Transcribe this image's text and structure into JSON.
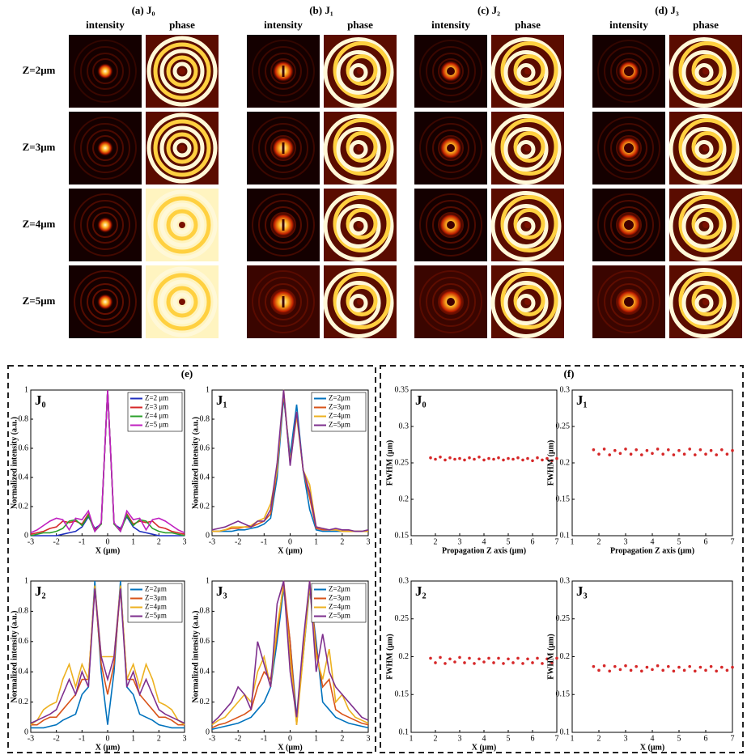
{
  "image_grid": {
    "columns": [
      {
        "label": "(a) J₀",
        "subtitles": [
          "intensity",
          "phase"
        ]
      },
      {
        "label": "(b) J₁",
        "subtitles": [
          "intensity",
          "phase"
        ]
      },
      {
        "label": "(c) J₂",
        "subtitles": [
          "intensity",
          "phase"
        ]
      },
      {
        "label": "(d) J₃",
        "subtitles": [
          "intensity",
          "phase"
        ]
      }
    ],
    "rows": [
      "Z=2μm",
      "Z=3μm",
      "Z=4μm",
      "Z=5μm"
    ]
  },
  "panel_labels": {
    "e": "(e)",
    "f": "(f)"
  },
  "chart_data": [
    {
      "type": "line",
      "title": "J₀",
      "xlabel": "X (μm)",
      "ylabel": "Normalized intensity (a.u.)",
      "legend": "upper right",
      "xlim": [
        -3,
        3
      ],
      "ylim": [
        0,
        1
      ],
      "xticks": [
        -3,
        -2,
        -1,
        0,
        1,
        2,
        3
      ],
      "yticks": [
        0,
        0.2,
        0.4,
        0.6,
        0.8,
        1
      ],
      "x": [
        -3,
        -2.75,
        -2.5,
        -2.25,
        -2,
        -1.75,
        -1.5,
        -1.25,
        -1,
        -0.75,
        -0.5,
        -0.25,
        0,
        0.25,
        0.5,
        0.75,
        1,
        1.25,
        1.5,
        1.75,
        2,
        2.25,
        2.5,
        2.75,
        3
      ],
      "series": [
        {
          "name": "Z=2 μm",
          "color": "#1f2fbf",
          "values": [
            0,
            0,
            0,
            0,
            0,
            0.01,
            0.02,
            0.03,
            0.06,
            0.13,
            0.05,
            0.08,
            1,
            0.08,
            0.05,
            0.13,
            0.06,
            0.03,
            0.02,
            0.01,
            0,
            0,
            0,
            0,
            0
          ]
        },
        {
          "name": "Z=3 μm",
          "color": "#d62728",
          "values": [
            0.01,
            0.02,
            0.03,
            0.05,
            0.06,
            0.1,
            0.09,
            0.1,
            0.08,
            0.15,
            0.04,
            0.08,
            1,
            0.08,
            0.04,
            0.15,
            0.08,
            0.1,
            0.09,
            0.1,
            0.06,
            0.05,
            0.03,
            0.02,
            0.01
          ]
        },
        {
          "name": "Z=4 μm",
          "color": "#2ca02c",
          "values": [
            0,
            0.01,
            0.02,
            0.02,
            0.03,
            0.05,
            0.1,
            0.11,
            0.07,
            0.14,
            0.03,
            0.08,
            1,
            0.08,
            0.03,
            0.14,
            0.07,
            0.11,
            0.1,
            0.05,
            0.03,
            0.02,
            0.02,
            0.01,
            0
          ]
        },
        {
          "name": "Z=5 μm",
          "color": "#c020c0",
          "values": [
            0.02,
            0.04,
            0.07,
            0.1,
            0.12,
            0.11,
            0.04,
            0.12,
            0.11,
            0.17,
            0.03,
            0.09,
            1,
            0.09,
            0.03,
            0.17,
            0.11,
            0.12,
            0.04,
            0.11,
            0.12,
            0.1,
            0.07,
            0.04,
            0.02
          ]
        }
      ]
    },
    {
      "type": "line",
      "title": "J₁",
      "xlabel": "X (μm)",
      "ylabel": "Normalized intensity (a.u.)",
      "legend": "upper right",
      "xlim": [
        -3,
        3
      ],
      "ylim": [
        0,
        1
      ],
      "xticks": [
        -3,
        -2,
        -1,
        0,
        1,
        2,
        3
      ],
      "yticks": [
        0,
        0.2,
        0.4,
        0.6,
        0.8,
        1
      ],
      "x": [
        -3,
        -2.75,
        -2.5,
        -2.25,
        -2,
        -1.75,
        -1.5,
        -1.25,
        -1,
        -0.75,
        -0.5,
        -0.25,
        0,
        0.25,
        0.5,
        0.75,
        1,
        1.25,
        1.5,
        1.75,
        2,
        2.25,
        2.5,
        2.75,
        3
      ],
      "series": [
        {
          "name": "Z=2μm",
          "color": "#0072bd",
          "values": [
            0.03,
            0.03,
            0.03,
            0.03,
            0.04,
            0.04,
            0.05,
            0.06,
            0.08,
            0.12,
            0.4,
            0.95,
            0.55,
            0.9,
            0.45,
            0.18,
            0.04,
            0.03,
            0.03,
            0.03,
            0.03,
            0.03,
            0.03,
            0.03,
            0.03
          ]
        },
        {
          "name": "Z=3μm",
          "color": "#d95319",
          "values": [
            0.03,
            0.03,
            0.04,
            0.05,
            0.05,
            0.06,
            0.06,
            0.08,
            0.1,
            0.15,
            0.45,
            0.98,
            0.5,
            0.85,
            0.45,
            0.26,
            0.05,
            0.04,
            0.04,
            0.04,
            0.03,
            0.03,
            0.03,
            0.03,
            0.03
          ]
        },
        {
          "name": "Z=4μm",
          "color": "#edb120",
          "values": [
            0.03,
            0.03,
            0.04,
            0.06,
            0.06,
            0.06,
            0.07,
            0.1,
            0.12,
            0.22,
            0.45,
            1,
            0.5,
            0.82,
            0.45,
            0.35,
            0.06,
            0.05,
            0.04,
            0.04,
            0.03,
            0.03,
            0.03,
            0.03,
            0.03
          ]
        },
        {
          "name": "Z=5μm",
          "color": "#7e2f8e",
          "values": [
            0.04,
            0.05,
            0.06,
            0.08,
            0.1,
            0.08,
            0.06,
            0.1,
            0.1,
            0.18,
            0.5,
            1,
            0.48,
            0.85,
            0.45,
            0.3,
            0.06,
            0.05,
            0.04,
            0.05,
            0.04,
            0.04,
            0.03,
            0.03,
            0.04
          ]
        }
      ]
    },
    {
      "type": "line",
      "title": "J₂",
      "xlabel": "X (μm)",
      "ylabel": "Normalized intensity (a.u.)",
      "legend": "upper right",
      "xlim": [
        -3,
        3
      ],
      "ylim": [
        0,
        1
      ],
      "xticks": [
        -3,
        -2,
        -1,
        0,
        1,
        2,
        3
      ],
      "yticks": [
        0,
        0.2,
        0.4,
        0.6,
        0.8,
        1
      ],
      "x": [
        -3,
        -2.75,
        -2.5,
        -2.25,
        -2,
        -1.75,
        -1.5,
        -1.25,
        -1,
        -0.75,
        -0.5,
        -0.25,
        0,
        0.25,
        0.5,
        0.75,
        1,
        1.25,
        1.5,
        1.75,
        2,
        2.25,
        2.5,
        2.75,
        3
      ],
      "series": [
        {
          "name": "Z=2μm",
          "color": "#0072bd",
          "values": [
            0.03,
            0.03,
            0.03,
            0.04,
            0.05,
            0.08,
            0.1,
            0.12,
            0.25,
            0.3,
            1,
            0.4,
            0.05,
            0.4,
            1,
            0.3,
            0.25,
            0.12,
            0.1,
            0.08,
            0.05,
            0.04,
            0.03,
            0.03,
            0.03
          ]
        },
        {
          "name": "Z=3μm",
          "color": "#d95319",
          "values": [
            0.05,
            0.05,
            0.08,
            0.1,
            0.1,
            0.15,
            0.2,
            0.25,
            0.35,
            0.35,
            0.95,
            0.45,
            0.25,
            0.45,
            0.95,
            0.35,
            0.35,
            0.25,
            0.2,
            0.15,
            0.1,
            0.1,
            0.08,
            0.05,
            0.05
          ]
        },
        {
          "name": "Z=4μm",
          "color": "#edb120",
          "values": [
            0.05,
            0.08,
            0.15,
            0.18,
            0.2,
            0.35,
            0.45,
            0.3,
            0.45,
            0.35,
            0.97,
            0.5,
            0.5,
            0.5,
            0.97,
            0.35,
            0.45,
            0.3,
            0.45,
            0.35,
            0.2,
            0.18,
            0.15,
            0.08,
            0.05
          ]
        },
        {
          "name": "Z=5μm",
          "color": "#7e2f8e",
          "values": [
            0.06,
            0.08,
            0.1,
            0.12,
            0.15,
            0.25,
            0.35,
            0.25,
            0.4,
            0.3,
            0.95,
            0.5,
            0.35,
            0.5,
            0.95,
            0.3,
            0.4,
            0.25,
            0.35,
            0.25,
            0.15,
            0.12,
            0.1,
            0.08,
            0.06
          ]
        }
      ]
    },
    {
      "type": "line",
      "title": "J₃",
      "xlabel": "X (μm)",
      "ylabel": "Normalized intensity (a.u.)",
      "legend": "upper right",
      "xlim": [
        -3,
        3
      ],
      "ylim": [
        0,
        1
      ],
      "xticks": [
        -3,
        -2,
        -1,
        0,
        1,
        2,
        3
      ],
      "yticks": [
        0,
        0.2,
        0.4,
        0.6,
        0.8,
        1
      ],
      "x": [
        -3,
        -2.75,
        -2.5,
        -2.25,
        -2,
        -1.75,
        -1.5,
        -1.25,
        -1,
        -0.75,
        -0.5,
        -0.25,
        0,
        0.25,
        0.5,
        0.75,
        1,
        1.25,
        1.5,
        1.75,
        2,
        2.25,
        2.5,
        2.75,
        3
      ],
      "series": [
        {
          "name": "Z=2μm",
          "color": "#0072bd",
          "values": [
            0.02,
            0.03,
            0.04,
            0.05,
            0.06,
            0.08,
            0.1,
            0.15,
            0.2,
            0.3,
            0.6,
            0.95,
            0.6,
            0.1,
            0.5,
            0.95,
            0.6,
            0.2,
            0.15,
            0.1,
            0.08,
            0.06,
            0.05,
            0.04,
            0.03
          ]
        },
        {
          "name": "Z=3μm",
          "color": "#d95319",
          "values": [
            0.03,
            0.05,
            0.06,
            0.08,
            0.1,
            0.12,
            0.15,
            0.3,
            0.4,
            0.35,
            0.65,
            1,
            0.6,
            0.05,
            0.55,
            1,
            0.55,
            0.3,
            0.35,
            0.15,
            0.12,
            0.1,
            0.08,
            0.06,
            0.05
          ]
        },
        {
          "name": "Z=4μm",
          "color": "#edb120",
          "values": [
            0.05,
            0.08,
            0.1,
            0.15,
            0.2,
            0.25,
            0.2,
            0.4,
            0.5,
            0.3,
            0.7,
            0.97,
            0.5,
            0.05,
            0.5,
            0.97,
            0.5,
            0.35,
            0.55,
            0.2,
            0.25,
            0.15,
            0.1,
            0.08,
            0.06
          ]
        },
        {
          "name": "Z=5μm",
          "color": "#7e2f8e",
          "values": [
            0.06,
            0.1,
            0.15,
            0.2,
            0.3,
            0.25,
            0.15,
            0.6,
            0.45,
            0.3,
            0.85,
            1,
            0.4,
            0.1,
            0.6,
            1,
            0.4,
            0.65,
            0.4,
            0.3,
            0.25,
            0.2,
            0.15,
            0.1,
            0.08
          ]
        }
      ]
    },
    {
      "type": "scatter",
      "title": "J₀",
      "xlabel": "Propagation Z axis (μm)",
      "ylabel": "FWHM (μm)",
      "color": "#d62728",
      "xlim": [
        1,
        7
      ],
      "ylim": [
        0.15,
        0.35
      ],
      "xticks": [
        1,
        2,
        3,
        4,
        5,
        6,
        7
      ],
      "yticks": [
        0.15,
        0.2,
        0.25,
        0.3,
        0.35
      ],
      "x": [
        1.8,
        2,
        2.2,
        2.4,
        2.6,
        2.8,
        3,
        3.2,
        3.4,
        3.6,
        3.8,
        4,
        4.2,
        4.4,
        4.6,
        4.8,
        5,
        5.2,
        5.4,
        5.6,
        5.8,
        6,
        6.2,
        6.4,
        6.6,
        6.8,
        7
      ],
      "values": [
        0.257,
        0.255,
        0.258,
        0.254,
        0.257,
        0.255,
        0.256,
        0.254,
        0.257,
        0.255,
        0.258,
        0.254,
        0.256,
        0.255,
        0.257,
        0.254,
        0.256,
        0.255,
        0.257,
        0.254,
        0.256,
        0.253,
        0.257,
        0.254,
        0.256,
        0.253,
        0.256
      ]
    },
    {
      "type": "scatter",
      "title": "J₁",
      "xlabel": "Propagation Z axis (μm)",
      "ylabel": "FWHM (μm)",
      "color": "#d62728",
      "xlim": [
        1,
        7
      ],
      "ylim": [
        0.1,
        0.3
      ],
      "xticks": [
        1,
        2,
        3,
        4,
        5,
        6,
        7
      ],
      "yticks": [
        0.1,
        0.15,
        0.2,
        0.25,
        0.3
      ],
      "x": [
        1.8,
        2,
        2.2,
        2.4,
        2.6,
        2.8,
        3,
        3.2,
        3.4,
        3.6,
        3.8,
        4,
        4.2,
        4.4,
        4.6,
        4.8,
        5,
        5.2,
        5.4,
        5.6,
        5.8,
        6,
        6.2,
        6.4,
        6.6,
        6.8,
        7
      ],
      "values": [
        0.218,
        0.212,
        0.219,
        0.211,
        0.217,
        0.213,
        0.219,
        0.212,
        0.218,
        0.211,
        0.217,
        0.213,
        0.219,
        0.212,
        0.218,
        0.211,
        0.217,
        0.212,
        0.219,
        0.211,
        0.218,
        0.212,
        0.217,
        0.211,
        0.218,
        0.212,
        0.217
      ]
    },
    {
      "type": "scatter",
      "title": "J₂",
      "xlabel": "X (μm)",
      "ylabel": "FWHM (μm)",
      "color": "#d62728",
      "xlim": [
        1,
        7
      ],
      "ylim": [
        0.1,
        0.3
      ],
      "xticks": [
        1,
        2,
        3,
        4,
        5,
        6,
        7
      ],
      "yticks": [
        0.1,
        0.15,
        0.2,
        0.25,
        0.3
      ],
      "x": [
        1.8,
        2,
        2.2,
        2.4,
        2.6,
        2.8,
        3,
        3.2,
        3.4,
        3.6,
        3.8,
        4,
        4.2,
        4.4,
        4.6,
        4.8,
        5,
        5.2,
        5.4,
        5.6,
        5.8,
        6,
        6.2,
        6.4,
        6.6,
        6.8,
        7
      ],
      "values": [
        0.198,
        0.192,
        0.199,
        0.191,
        0.197,
        0.193,
        0.199,
        0.192,
        0.198,
        0.191,
        0.197,
        0.193,
        0.198,
        0.192,
        0.198,
        0.191,
        0.197,
        0.192,
        0.198,
        0.191,
        0.197,
        0.192,
        0.198,
        0.191,
        0.197,
        0.192,
        0.198
      ]
    },
    {
      "type": "scatter",
      "title": "J₃",
      "xlabel": "X (μm)",
      "ylabel": "FWHM (μm)",
      "color": "#d62728",
      "xlim": [
        1,
        7
      ],
      "ylim": [
        0.1,
        0.3
      ],
      "xticks": [
        1,
        2,
        3,
        4,
        5,
        6,
        7
      ],
      "yticks": [
        0.1,
        0.15,
        0.2,
        0.25,
        0.3
      ],
      "x": [
        1.8,
        2,
        2.2,
        2.4,
        2.6,
        2.8,
        3,
        3.2,
        3.4,
        3.6,
        3.8,
        4,
        4.2,
        4.4,
        4.6,
        4.8,
        5,
        5.2,
        5.4,
        5.6,
        5.8,
        6,
        6.2,
        6.4,
        6.6,
        6.8,
        7
      ],
      "values": [
        0.187,
        0.182,
        0.188,
        0.181,
        0.187,
        0.183,
        0.188,
        0.182,
        0.187,
        0.181,
        0.186,
        0.183,
        0.188,
        0.182,
        0.187,
        0.181,
        0.186,
        0.182,
        0.187,
        0.181,
        0.186,
        0.182,
        0.187,
        0.181,
        0.186,
        0.182,
        0.186
      ]
    }
  ]
}
